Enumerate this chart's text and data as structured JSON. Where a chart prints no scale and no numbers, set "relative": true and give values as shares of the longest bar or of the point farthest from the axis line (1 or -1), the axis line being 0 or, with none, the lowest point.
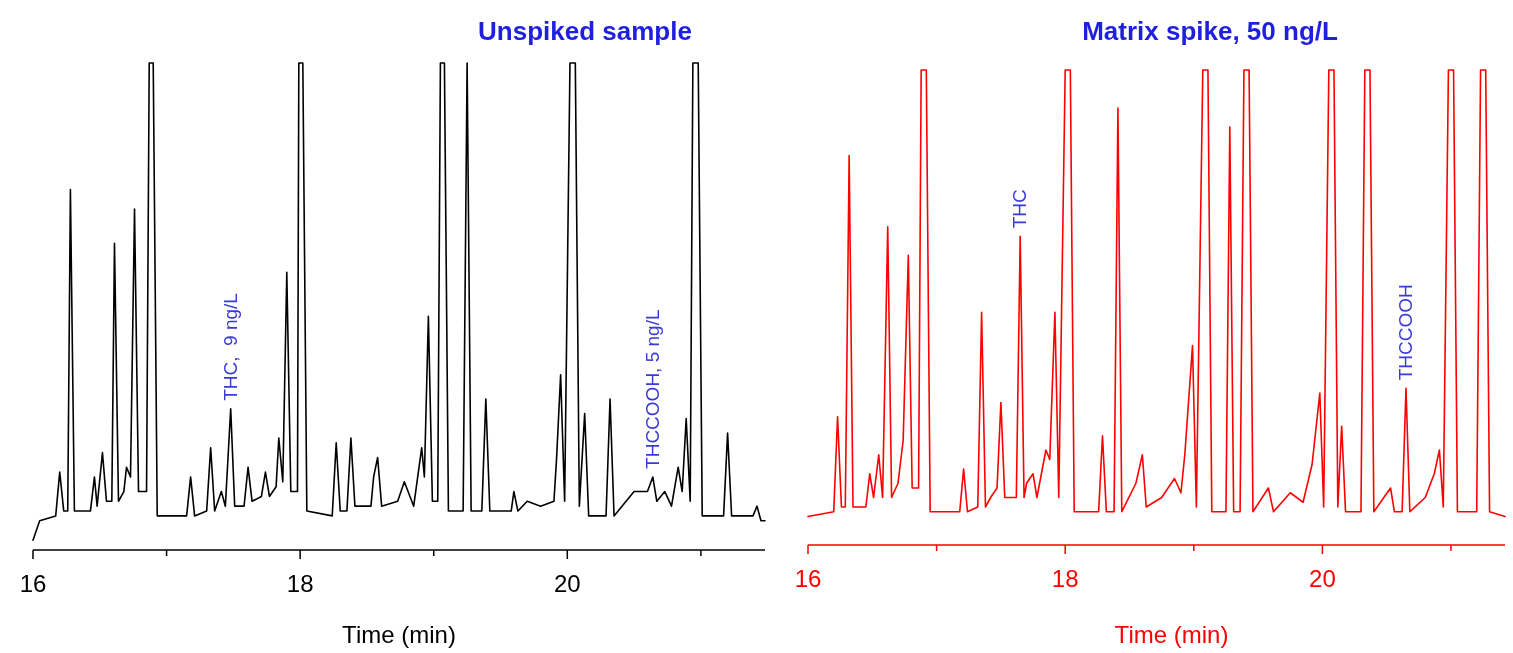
{
  "chart_data": [
    {
      "type": "line",
      "title": "Unspiked sample",
      "xlabel": "Time (min)",
      "relative": true,
      "xlim": [
        16,
        21.48
      ],
      "xticks": [
        16,
        {
          "value": 17,
          "label": null
        },
        18,
        {
          "value": 19,
          "label": null
        },
        20,
        {
          "value": 21,
          "label": null
        }
      ],
      "annotations": [
        {
          "text": "THC,  9 ng/L",
          "x": 17.48,
          "y": 0.29
        },
        {
          "text": "THCCOOH, 5 ng/L",
          "x": 20.64,
          "y": 0.15
        }
      ],
      "series": [
        {
          "color": "#000000",
          "x": [
            16.0,
            16.05,
            16.17,
            16.2,
            16.23,
            16.26,
            16.28,
            16.31,
            16.43,
            16.46,
            16.48,
            16.52,
            16.55,
            16.59,
            16.61,
            16.64,
            16.68,
            16.7,
            16.73,
            16.76,
            16.79,
            16.85,
            16.87,
            16.9,
            16.93,
            17.15,
            17.18,
            17.21,
            17.3,
            17.33,
            17.36,
            17.41,
            17.44,
            17.48,
            17.51,
            17.58,
            17.61,
            17.64,
            17.71,
            17.74,
            17.77,
            17.82,
            17.84,
            17.87,
            17.9,
            17.93,
            17.98,
            17.99,
            18.02,
            18.05,
            18.24,
            18.27,
            18.3,
            18.35,
            18.38,
            18.41,
            18.53,
            18.55,
            18.58,
            18.61,
            18.73,
            18.78,
            18.85,
            18.91,
            18.93,
            18.96,
            18.99,
            19.03,
            19.05,
            19.08,
            19.11,
            19.22,
            19.25,
            19.28,
            19.36,
            19.39,
            19.42,
            19.58,
            19.6,
            19.63,
            19.7,
            19.8,
            19.9,
            19.92,
            19.95,
            19.98,
            20.02,
            20.06,
            20.09,
            20.13,
            20.16,
            20.29,
            20.32,
            20.35,
            20.5,
            20.6,
            20.64,
            20.67,
            20.73,
            20.78,
            20.83,
            20.86,
            20.89,
            20.92,
            20.94,
            20.98,
            21.01,
            21.17,
            21.2,
            21.23,
            21.39,
            21.42,
            21.45,
            21.48
          ],
          "values": [
            0.02,
            0.06,
            0.07,
            0.16,
            0.08,
            0.08,
            0.74,
            0.08,
            0.08,
            0.15,
            0.09,
            0.2,
            0.1,
            0.1,
            0.63,
            0.1,
            0.12,
            0.17,
            0.15,
            0.7,
            0.12,
            0.12,
            1,
            1,
            0.07,
            0.07,
            0.15,
            0.07,
            0.08,
            0.21,
            0.08,
            0.12,
            0.09,
            0.29,
            0.09,
            0.09,
            0.17,
            0.1,
            0.11,
            0.16,
            0.11,
            0.13,
            0.23,
            0.14,
            0.57,
            0.12,
            0.12,
            1,
            1,
            0.08,
            0.07,
            0.22,
            0.08,
            0.08,
            0.23,
            0.09,
            0.09,
            0.15,
            0.19,
            0.09,
            0.1,
            0.14,
            0.09,
            0.21,
            0.15,
            0.48,
            0.1,
            0.1,
            1,
            1,
            0.08,
            0.08,
            1,
            0.08,
            0.08,
            0.31,
            0.08,
            0.08,
            0.12,
            0.08,
            0.1,
            0.09,
            0.1,
            0.19,
            0.36,
            0.1,
            1,
            1,
            0.09,
            0.28,
            0.07,
            0.07,
            0.31,
            0.07,
            0.12,
            0.12,
            0.15,
            0.1,
            0.12,
            0.09,
            0.17,
            0.12,
            0.27,
            0.1,
            1,
            1,
            0.07,
            0.07,
            0.24,
            0.07,
            0.07,
            0.09,
            0.06,
            0.06
          ]
        }
      ]
    },
    {
      "type": "line",
      "title": "Matrix spike, 50 ng/L",
      "xlabel": "Time (min)",
      "relative": true,
      "xlim": [
        16,
        21.42
      ],
      "xticks": [
        16,
        {
          "value": 17,
          "label": null
        },
        18,
        {
          "value": 19,
          "label": null
        },
        20,
        {
          "value": 21,
          "label": null
        }
      ],
      "annotations": [
        {
          "text": "THC",
          "x": 17.65,
          "y": 0.65
        },
        {
          "text": "THCCOOH",
          "x": 20.65,
          "y": 0.33
        }
      ],
      "series": [
        {
          "color": "#ff0000",
          "x": [
            16.0,
            16.2,
            16.23,
            16.26,
            16.29,
            16.32,
            16.35,
            16.45,
            16.48,
            16.51,
            16.55,
            16.58,
            16.62,
            16.65,
            16.7,
            16.74,
            16.78,
            16.81,
            16.86,
            16.88,
            16.92,
            16.95,
            17.18,
            17.21,
            17.24,
            17.32,
            17.35,
            17.38,
            17.42,
            17.47,
            17.5,
            17.53,
            17.62,
            17.65,
            17.68,
            17.7,
            17.75,
            17.78,
            17.85,
            17.88,
            17.92,
            17.95,
            18.0,
            18.04,
            18.07,
            18.26,
            18.29,
            18.32,
            18.38,
            18.41,
            18.44,
            18.55,
            18.6,
            18.63,
            18.75,
            18.85,
            18.9,
            18.93,
            18.99,
            19.02,
            19.07,
            19.11,
            19.14,
            19.25,
            19.28,
            19.31,
            19.36,
            19.39,
            19.43,
            19.46,
            19.58,
            19.62,
            19.75,
            19.85,
            19.92,
            19.98,
            20.01,
            20.05,
            20.09,
            20.12,
            20.15,
            20.18,
            20.3,
            20.33,
            20.37,
            20.4,
            20.53,
            20.56,
            20.62,
            20.65,
            20.68,
            20.8,
            20.87,
            20.91,
            20.94,
            20.98,
            21.02,
            21.05,
            21.2,
            21.23,
            21.27,
            21.3,
            21.42
          ],
          "values": [
            0.06,
            0.07,
            0.27,
            0.08,
            0.08,
            0.82,
            0.08,
            0.08,
            0.15,
            0.1,
            0.19,
            0.1,
            0.67,
            0.1,
            0.13,
            0.22,
            0.61,
            0.12,
            0.12,
            1,
            1,
            0.07,
            0.07,
            0.16,
            0.07,
            0.08,
            0.49,
            0.08,
            0.1,
            0.12,
            0.3,
            0.1,
            0.1,
            0.65,
            0.1,
            0.13,
            0.15,
            0.1,
            0.2,
            0.18,
            0.49,
            0.1,
            1,
            1,
            0.07,
            0.07,
            0.23,
            0.07,
            0.07,
            0.92,
            0.07,
            0.13,
            0.19,
            0.08,
            0.1,
            0.14,
            0.11,
            0.19,
            0.42,
            0.08,
            1,
            1,
            0.07,
            0.07,
            0.88,
            0.07,
            0.07,
            1,
            1,
            0.07,
            0.12,
            0.07,
            0.11,
            0.09,
            0.17,
            0.32,
            0.08,
            1,
            1,
            0.08,
            0.25,
            0.07,
            0.07,
            1,
            1,
            0.07,
            0.12,
            0.07,
            0.07,
            0.33,
            0.07,
            0.1,
            0.15,
            0.2,
            0.08,
            1,
            1,
            0.07,
            0.07,
            1,
            1,
            0.07,
            0.06
          ]
        }
      ]
    }
  ]
}
